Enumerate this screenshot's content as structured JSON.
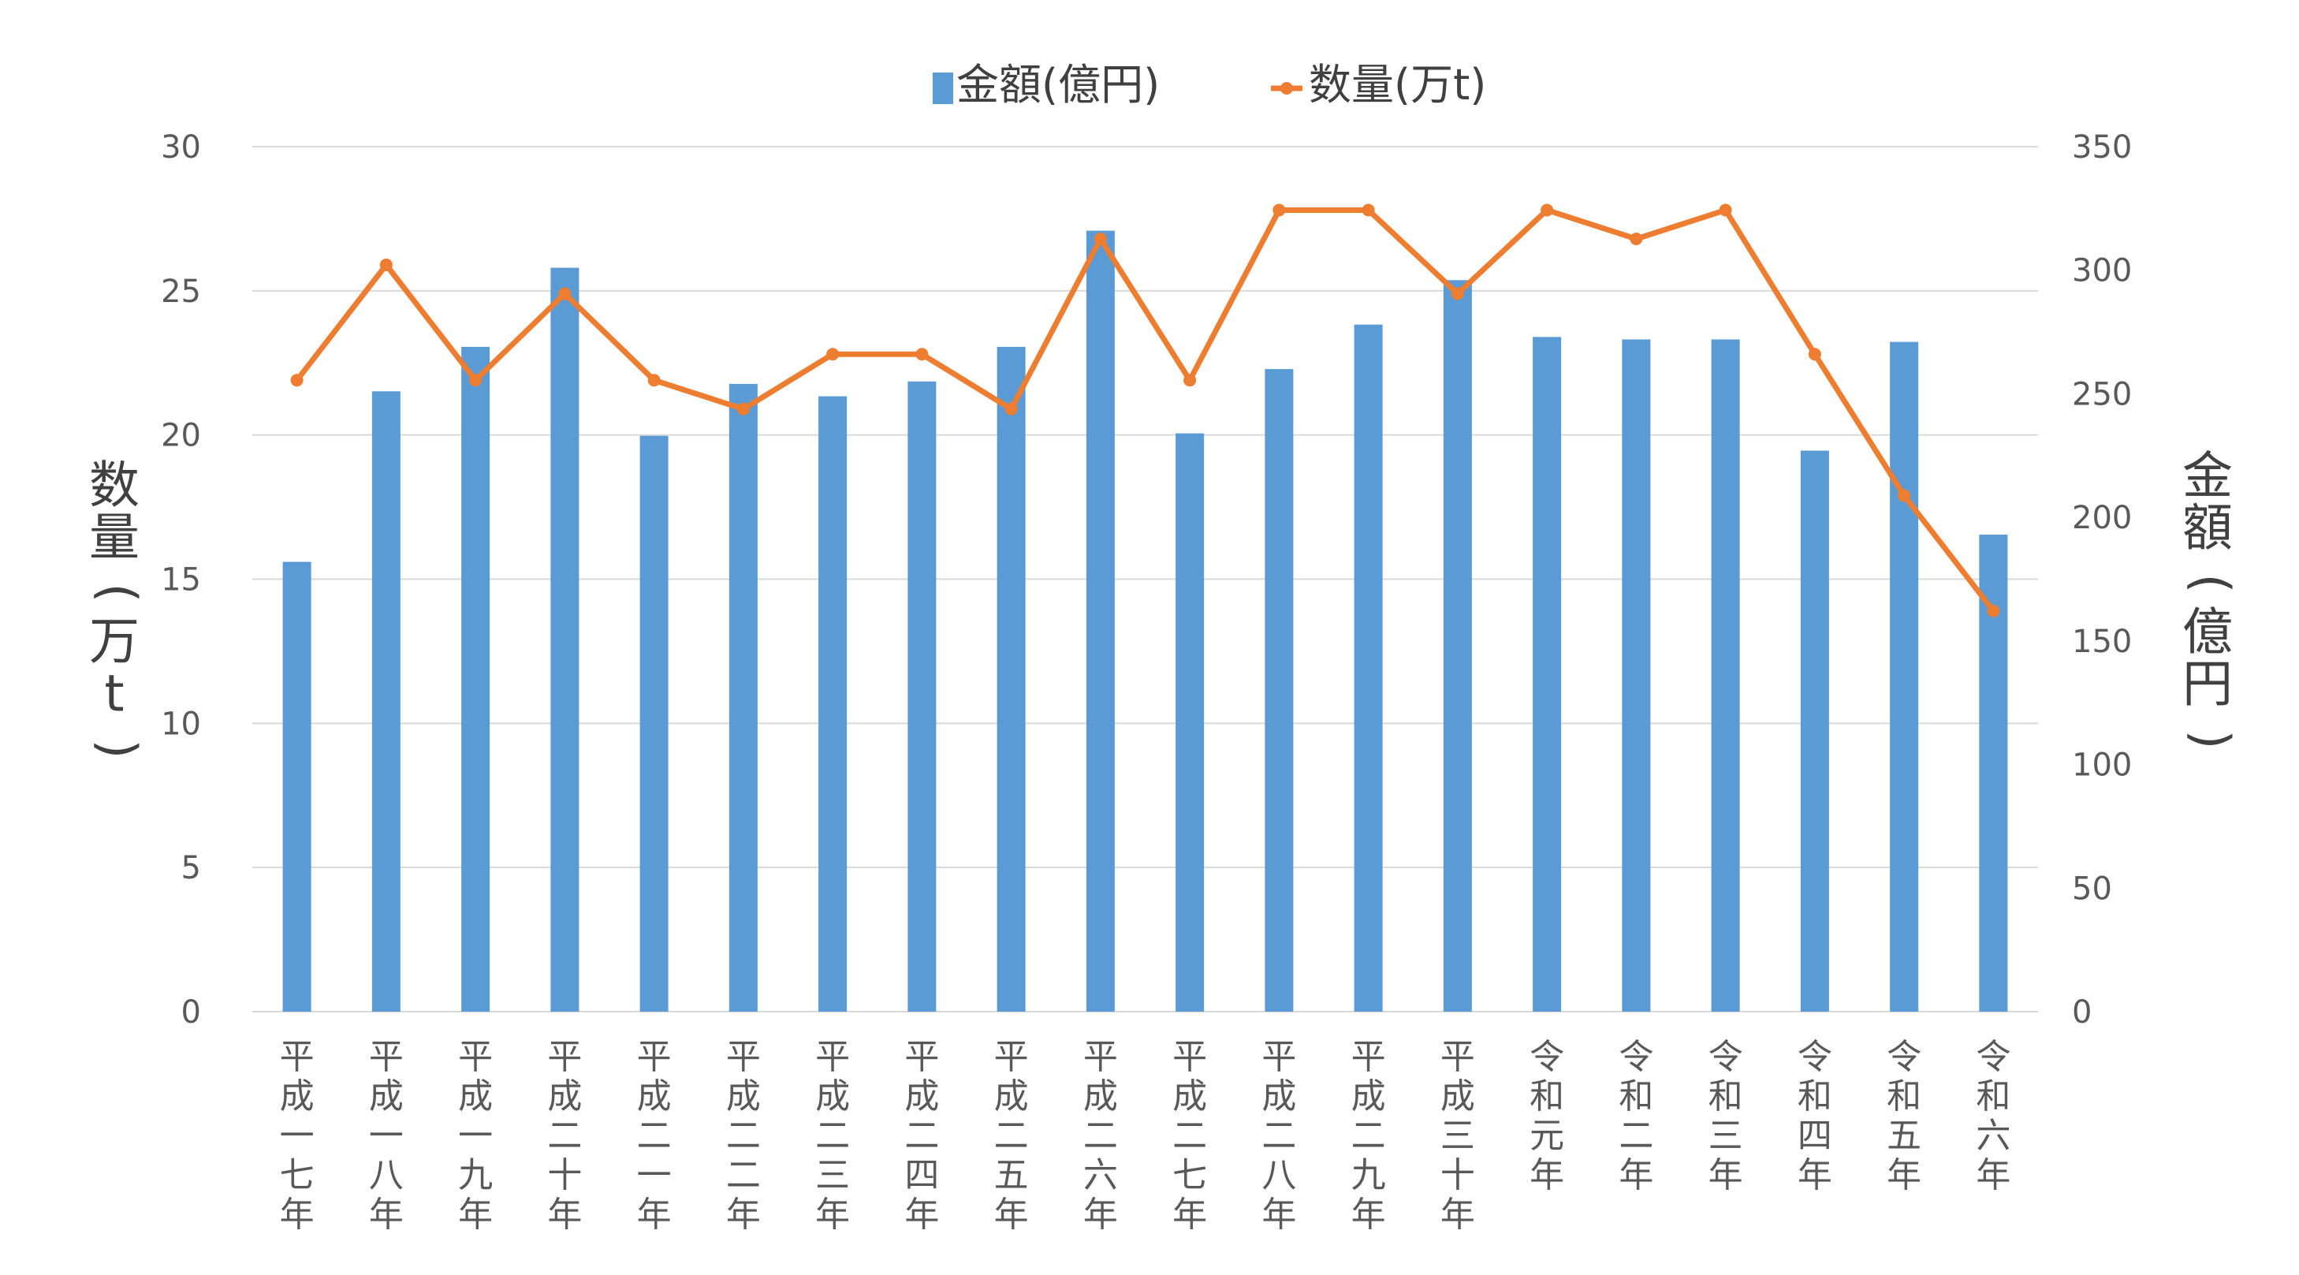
{
  "chart_data": {
    "type": "bar",
    "categories": [
      "平成一七年",
      "平成一八年",
      "平成一九年",
      "平成二十年",
      "平成二一年",
      "平成二二年",
      "平成二三年",
      "平成二四年",
      "平成二五年",
      "平成二六年",
      "平成二七年",
      "平成二八年",
      "平成二九年",
      "平成三十年",
      "令和元年",
      "令和二年",
      "令和三年",
      "令和四年",
      "令和五年",
      "令和六年"
    ],
    "series": [
      {
        "name": "金額(億円)",
        "type": "bar",
        "axis": "right",
        "color": "#5B9BD5",
        "values": [
          182,
          251,
          269,
          301,
          233,
          254,
          249,
          255,
          269,
          316,
          234,
          260,
          278,
          296,
          273,
          272,
          272,
          227,
          271,
          193
        ]
      },
      {
        "name": "数量(万t)",
        "type": "line",
        "axis": "left",
        "color": "#ED7D31",
        "values": [
          21.9,
          25.9,
          21.9,
          24.9,
          21.9,
          20.9,
          22.8,
          22.8,
          20.9,
          26.8,
          21.9,
          27.8,
          27.8,
          24.9,
          27.8,
          26.8,
          27.8,
          22.8,
          17.9,
          13.9
        ]
      }
    ],
    "y_left": {
      "label_chars": [
        "数",
        "量",
        "(",
        "万",
        "t",
        ")"
      ],
      "ylim": [
        0,
        30
      ],
      "ticks": [
        "0",
        "5",
        "10",
        "15",
        "20",
        "25",
        "30"
      ]
    },
    "y_right": {
      "label_chars": [
        "金",
        "額",
        "(",
        "億",
        "円",
        ")"
      ],
      "ylim": [
        0,
        350
      ],
      "ticks": [
        "0",
        "50",
        "100",
        "150",
        "200",
        "250",
        "300",
        "350"
      ]
    },
    "legend_position": "top-center",
    "grid": true
  }
}
